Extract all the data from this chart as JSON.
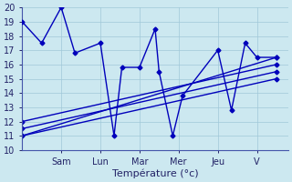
{
  "xlabel": "Température (°c)",
  "xlim": [
    0,
    6.8
  ],
  "ylim": [
    10,
    20
  ],
  "yticks": [
    10,
    11,
    12,
    13,
    14,
    15,
    16,
    17,
    18,
    19,
    20
  ],
  "xtick_positions": [
    1,
    2,
    3,
    4,
    5,
    6
  ],
  "xtick_labels": [
    "Sam",
    "Lun",
    "Mar",
    "Mer",
    "Jeu",
    "V"
  ],
  "background_color": "#cce8f0",
  "grid_color": "#a0c8d8",
  "line_color": "#0000bb",
  "zigzag": {
    "x": [
      0,
      0.5,
      1.0,
      1.35,
      2.0,
      2.35,
      2.55,
      3.0,
      3.4,
      3.5,
      3.85,
      4.1,
      5.0,
      5.35,
      5.7,
      6.0,
      6.5
    ],
    "y": [
      19,
      17.5,
      20,
      16.8,
      17.5,
      11.0,
      15.8,
      15.8,
      18.5,
      15.5,
      11.0,
      13.8,
      17.0,
      12.8,
      17.5,
      16.5,
      16.5
    ]
  },
  "trend_lines": [
    {
      "x": [
        0,
        6.5
      ],
      "y": [
        11.0,
        16.5
      ]
    },
    {
      "x": [
        0,
        6.5
      ],
      "y": [
        11.5,
        15.5
      ]
    },
    {
      "x": [
        0,
        6.5
      ],
      "y": [
        12.0,
        16.0
      ]
    },
    {
      "x": [
        0,
        6.5
      ],
      "y": [
        11.0,
        15.0
      ]
    }
  ],
  "marker": "D",
  "markersize": 2.5,
  "linewidth": 1.0
}
